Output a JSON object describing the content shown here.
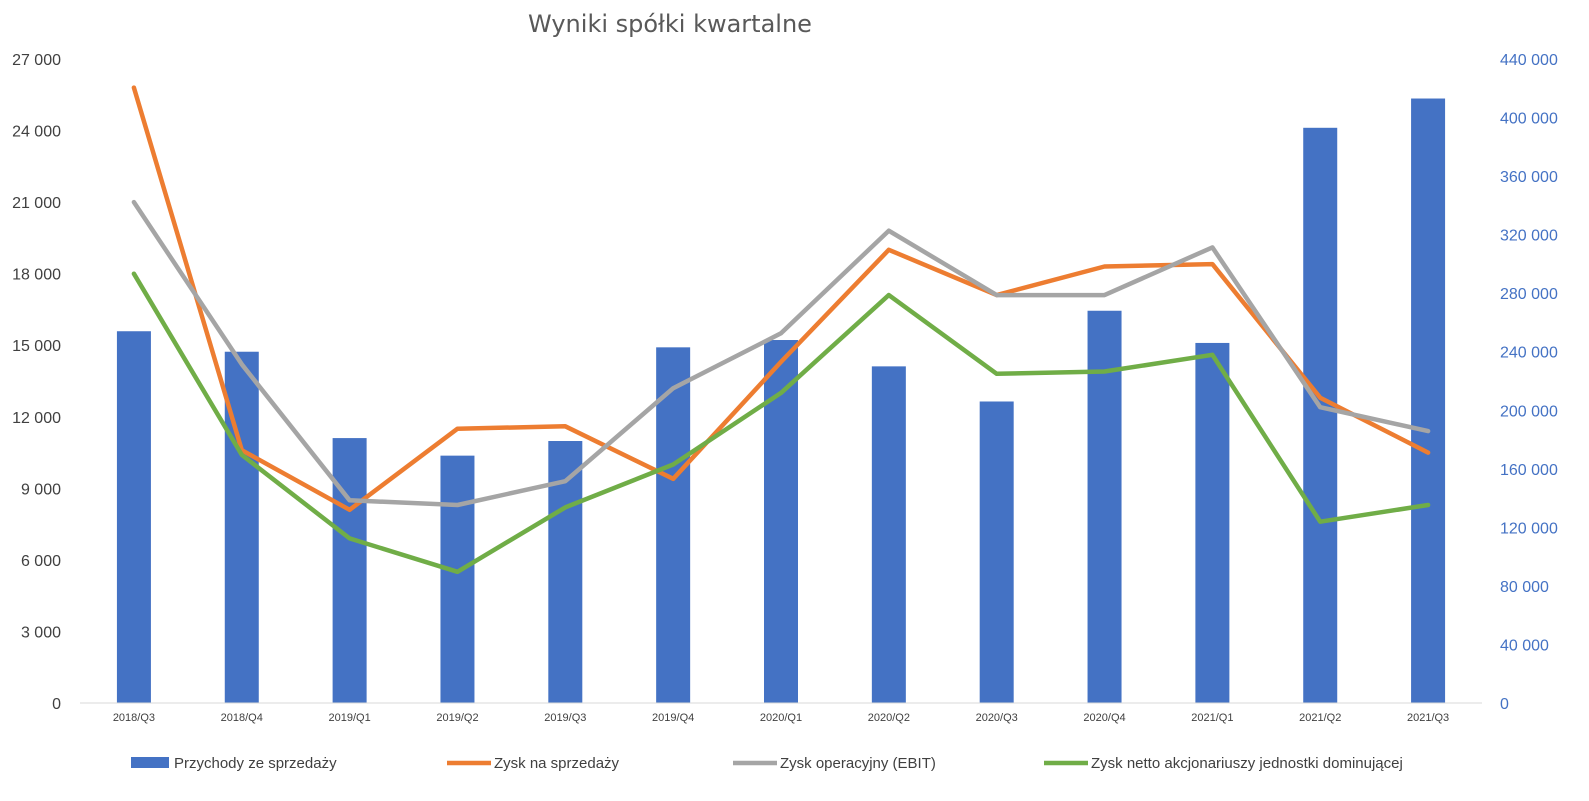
{
  "chart_data": {
    "type": "bar+line",
    "title": "Wyniki spółki kwartalne",
    "categories": [
      "2018/Q3",
      "2018/Q4",
      "2019/Q1",
      "2019/Q2",
      "2019/Q3",
      "2019/Q4",
      "2020/Q1",
      "2020/Q2",
      "2020/Q3",
      "2020/Q4",
      "2021/Q1",
      "2021/Q2",
      "2021/Q3"
    ],
    "y_left": {
      "min": 0,
      "max": 27000,
      "ticks": [
        "0",
        "3 000",
        "6 000",
        "9 000",
        "12 000",
        "15 000",
        "18 000",
        "21 000",
        "24 000",
        "27 000"
      ]
    },
    "y_right": {
      "min": 0,
      "max": 440000,
      "ticks": [
        "0",
        "40 000",
        "80 000",
        "120 000",
        "160 000",
        "200 000",
        "240 000",
        "280 000",
        "320 000",
        "360 000",
        "400 000",
        "440 000"
      ]
    },
    "series": [
      {
        "name": "Przychody ze sprzedaży",
        "type": "bar",
        "axis": "right",
        "color": "#4472C4",
        "values": [
          254000,
          240000,
          181000,
          169000,
          179000,
          243000,
          248000,
          230000,
          206000,
          268000,
          246000,
          393000,
          413000
        ]
      },
      {
        "name": "Zysk na sprzedaży",
        "type": "line",
        "axis": "left",
        "color": "#ED7D31",
        "values": [
          25800,
          10600,
          8100,
          11500,
          11600,
          9400,
          14300,
          19000,
          17100,
          18300,
          18400,
          12800,
          10500
        ]
      },
      {
        "name": "Zysk operacyjny (EBIT)",
        "type": "line",
        "axis": "left",
        "color": "#A5A5A5",
        "values": [
          21000,
          14200,
          8500,
          8300,
          9300,
          13200,
          15500,
          19800,
          17100,
          17100,
          19100,
          12400,
          11400
        ]
      },
      {
        "name": "Zysk netto akcjonariuszy jednostki dominującej",
        "type": "line",
        "axis": "left",
        "color": "#70AD47",
        "values": [
          18000,
          10400,
          6900,
          5500,
          8200,
          10000,
          13000,
          17100,
          13800,
          13900,
          14600,
          7600,
          8300
        ]
      }
    ],
    "legend_position": "bottom",
    "grid": false
  }
}
